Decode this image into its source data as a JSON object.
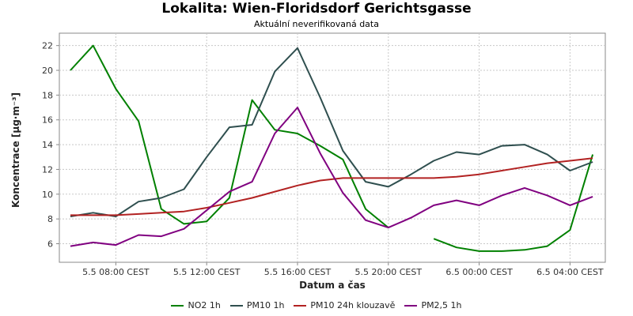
{
  "chart_data": {
    "type": "line",
    "title": "Lokalita: Wien-Floridsdorf Gerichtsgasse",
    "subtitle": "Aktuální neverifikovaná data",
    "xlabel": "Datum a čas",
    "ylabel": "Koncentrace [µg·m⁻³]",
    "x": [
      "5.5 06:00",
      "5.5 07:00",
      "5.5 08:00",
      "5.5 09:00",
      "5.5 10:00",
      "5.5 11:00",
      "5.5 12:00",
      "5.5 13:00",
      "5.5 14:00",
      "5.5 15:00",
      "5.5 16:00",
      "5.5 17:00",
      "5.5 18:00",
      "5.5 19:00",
      "5.5 20:00",
      "5.5 21:00",
      "5.5 22:00",
      "5.5 23:00",
      "6.5 00:00",
      "6.5 01:00",
      "6.5 02:00",
      "6.5 03:00",
      "6.5 04:00",
      "6.5 05:00"
    ],
    "xticks": [
      "5.5 08:00 CEST",
      "5.5 12:00 CEST",
      "5.5 16:00 CEST",
      "5.5 20:00 CEST",
      "6.5 00:00 CEST",
      "6.5 04:00 CEST"
    ],
    "ylim": [
      4.5,
      23
    ],
    "yticks": [
      "6",
      "8",
      "10",
      "12",
      "14",
      "16",
      "18",
      "20",
      "22"
    ],
    "grid": true,
    "legend_position": "bottom",
    "series": [
      {
        "name": "NO2 1h",
        "color": "#008000",
        "values": [
          20.0,
          22.0,
          18.5,
          15.9,
          8.8,
          7.6,
          7.8,
          9.7,
          17.6,
          15.2,
          14.9,
          13.9,
          12.8,
          8.8,
          7.3,
          null,
          6.4,
          5.7,
          5.4,
          5.4,
          5.5,
          5.8,
          7.1,
          13.2
        ]
      },
      {
        "name": "PM10 1h",
        "color": "#2f4f4f",
        "values": [
          8.2,
          8.5,
          8.2,
          9.4,
          9.7,
          10.4,
          13.0,
          15.4,
          15.6,
          19.9,
          21.8,
          17.8,
          13.5,
          11.0,
          10.6,
          11.6,
          12.7,
          13.4,
          13.2,
          13.9,
          14.0,
          13.2,
          11.9,
          12.6
        ]
      },
      {
        "name": "PM10 24h klouzavě",
        "color": "#b22222",
        "values": [
          8.3,
          8.3,
          8.3,
          8.4,
          8.5,
          8.6,
          8.9,
          9.3,
          9.7,
          10.2,
          10.7,
          11.1,
          11.3,
          11.3,
          11.3,
          11.3,
          11.3,
          11.4,
          11.6,
          11.9,
          12.2,
          12.5,
          12.7,
          12.9
        ]
      },
      {
        "name": "PM2,5 1h",
        "color": "#800080",
        "values": [
          5.8,
          6.1,
          5.9,
          6.7,
          6.6,
          7.2,
          8.7,
          10.2,
          11.0,
          14.9,
          17.0,
          13.3,
          10.1,
          7.9,
          7.3,
          8.1,
          9.1,
          9.5,
          9.1,
          9.9,
          10.5,
          9.9,
          9.1,
          9.8
        ]
      }
    ]
  }
}
